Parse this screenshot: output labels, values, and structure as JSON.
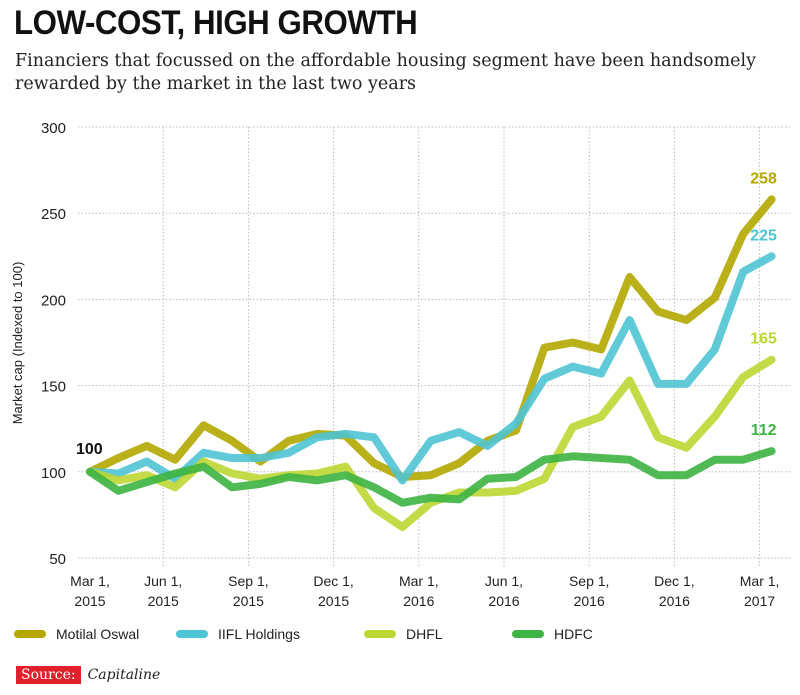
{
  "chart_data": {
    "type": "line",
    "title": "LOW-COST, HIGH GROWTH",
    "subtitle": "Financiers that focussed on the affordable housing segment have been handsomely rewarded by the market in the last two years",
    "ylabel": "Market cap (Indexed to 100)",
    "xlabel": "",
    "ylim": [
      50,
      300
    ],
    "yticks": [
      300,
      250,
      200,
      150,
      100,
      50
    ],
    "xticks": [
      [
        "Mar 1,",
        "2015"
      ],
      [
        "Jun 1,",
        "2015"
      ],
      [
        "Sep 1,",
        "2015"
      ],
      [
        "Dec 1,",
        "2015"
      ],
      [
        "Mar 1,",
        "2016"
      ],
      [
        "Jun 1,",
        "2016"
      ],
      [
        "Sep 1,",
        "2016"
      ],
      [
        "Dec 1,",
        "2016"
      ],
      [
        "Mar 1,",
        "2017"
      ]
    ],
    "start_label": "100",
    "grid": true,
    "legend_position": "bottom",
    "series": [
      {
        "name": "Motilal Oswal",
        "color": "#b3a700",
        "end_label": "258",
        "values": [
          100,
          108,
          115,
          107,
          127,
          118,
          106,
          118,
          122,
          121,
          105,
          97,
          98,
          105,
          118,
          124,
          172,
          175,
          171,
          213,
          193,
          188,
          201,
          238,
          258
        ]
      },
      {
        "name": "IIFL Holdings",
        "color": "#4fc4d4",
        "end_label": "225",
        "values": [
          100,
          99,
          106,
          96,
          111,
          108,
          108,
          111,
          120,
          122,
          120,
          95,
          118,
          123,
          115,
          128,
          154,
          161,
          157,
          188,
          151,
          151,
          171,
          216,
          225
        ]
      },
      {
        "name": "DHFL",
        "color": "#bed632",
        "end_label": "165",
        "values": [
          100,
          95,
          98,
          91,
          106,
          99,
          96,
          98,
          99,
          103,
          79,
          68,
          82,
          88,
          88,
          89,
          96,
          126,
          132,
          153,
          120,
          114,
          132,
          155,
          165
        ]
      },
      {
        "name": "HDFC",
        "color": "#3db443",
        "end_label": "112",
        "values": [
          100,
          89,
          94,
          99,
          103,
          91,
          93,
          97,
          95,
          98,
          91,
          82,
          85,
          84,
          96,
          97,
          107,
          109,
          108,
          107,
          98,
          98,
          107,
          107,
          112
        ]
      }
    ]
  },
  "source": {
    "label": "Source:",
    "value": "Capitaline"
  }
}
